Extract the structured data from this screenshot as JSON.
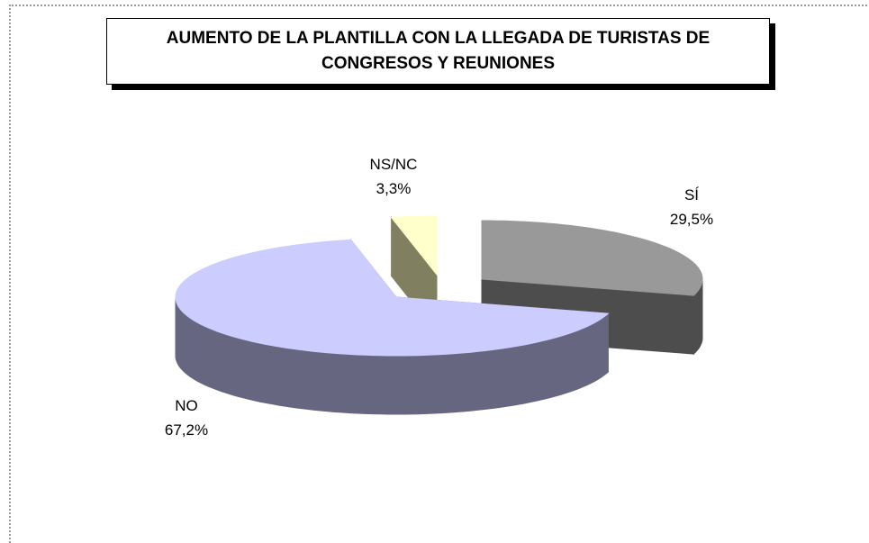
{
  "chart_data": {
    "type": "pie3d",
    "title": "AUMENTO DE LA PLANTILLA CON LA LLEGADA DE TURISTAS DE CONGRESOS Y REUNIONES",
    "categories": [
      "SÍ",
      "NO",
      "NS/NC"
    ],
    "values": [
      29.5,
      67.2,
      3.3
    ],
    "value_labels": [
      "29,5%",
      "67,2%",
      "3,3%"
    ],
    "colors": [
      "#999999",
      "#ccccff",
      "#ffffcc"
    ],
    "side_colors": [
      "#4d4d4d",
      "#666680",
      "#808060"
    ]
  }
}
